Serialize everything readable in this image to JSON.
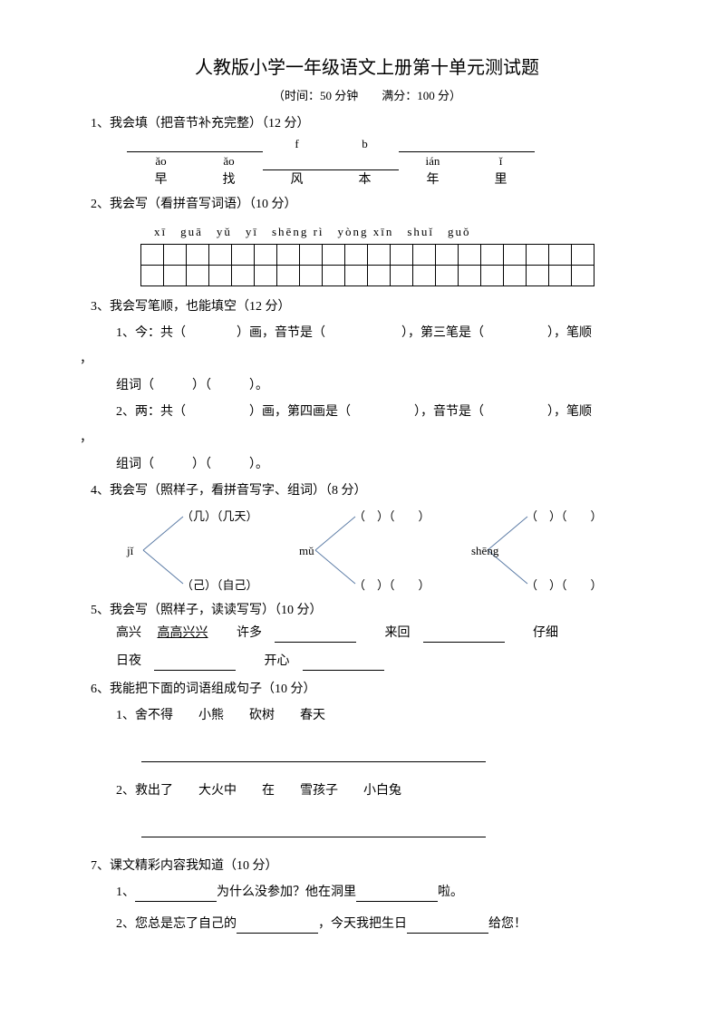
{
  "title": "人教版小学一年级语文上册第十单元测试题",
  "subtitle": "（时间：50 分钟　　满分：100 分）",
  "q1": {
    "heading": "1、我会填（把音节补充完整）（12 分）",
    "pinyin": [
      "ǎo",
      "ǎo",
      "f",
      "b",
      "ián",
      "ǐ"
    ],
    "prefixBlank": [
      true,
      true,
      false,
      false,
      true,
      true
    ],
    "suffixBlank": [
      false,
      false,
      true,
      true,
      false,
      false
    ],
    "chars": [
      "早",
      "找",
      "风",
      "本",
      "年",
      "里"
    ]
  },
  "q2": {
    "heading": "2、我会写（看拼音写词语）（10 分）",
    "pinyin": "xī　guā　yǔ　yī　shēng rì　yòng xīn　shuǐ　guǒ",
    "cols": 20,
    "rows": 2
  },
  "q3": {
    "heading": "3、我会写笔顺，也能填空（12 分）",
    "sub1a": "1、今：共（　　　　）画，音节是（　　　　　　），第三笔是（　　　　　），笔顺",
    "sub1b": "组词（　　　）（　　　）。",
    "sub2a": "2、两：共（　　　　　）画，第四画是（　　　　　），音节是（　　　　　），笔顺",
    "sub2b": "组词（　　　）（　　　）。"
  },
  "q4": {
    "heading": "4、我会写（照样子，看拼音写字、组词）（8 分）",
    "items": [
      {
        "top": "（几）（几天）",
        "mid": "jǐ",
        "bot": "（己）（自己）"
      },
      {
        "top": "（　）（　　）",
        "mid": "mǔ",
        "bot": "（　）（　　）"
      },
      {
        "top": "（　）（　　）",
        "mid": "shēng",
        "bot": "（　）（　　）"
      }
    ],
    "line_color": "#5b7ba5"
  },
  "q5": {
    "heading": "5、我会写（照样子，读读写写）（10 分）",
    "row1": {
      "a": "高兴",
      "b": "高高兴兴",
      "c": "许多",
      "d": "来回",
      "e": "仔细"
    },
    "row2": {
      "a": "日夜",
      "b": "开心"
    }
  },
  "q6": {
    "heading": "6、我能把下面的词语组成句子（10 分）",
    "s1": "1、舍不得　　小熊　　砍树　　春天",
    "s2": "2、救出了　　大火中　　在　　雪孩子　　小白兔"
  },
  "q7": {
    "heading": "7、课文精彩内容我知道（10 分）",
    "s1a": "1、",
    "s1b": "为什么没参加？他在洞里",
    "s1c": "啦。",
    "s2a": "2、您总是忘了自己的",
    "s2b": "，今天我把生日",
    "s2c": "给您！"
  }
}
